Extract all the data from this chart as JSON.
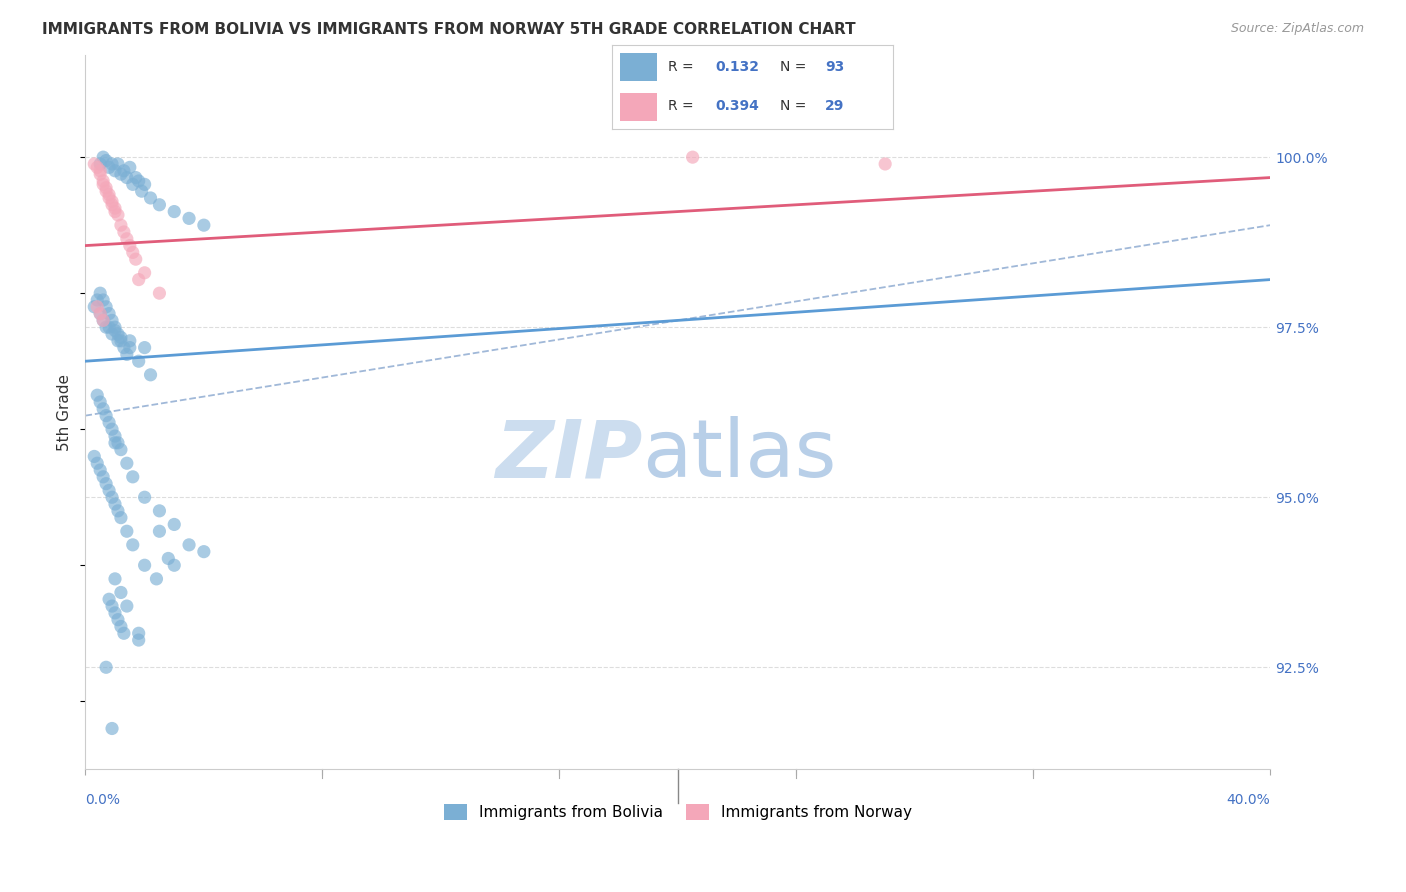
{
  "title": "IMMIGRANTS FROM BOLIVIA VS IMMIGRANTS FROM NORWAY 5TH GRADE CORRELATION CHART",
  "source": "Source: ZipAtlas.com",
  "ylabel": "5th Grade",
  "x_label_bottom_left": "0.0%",
  "x_label_bottom_right": "40.0%",
  "y_tick_labels": [
    "92.5%",
    "95.0%",
    "97.5%",
    "100.0%"
  ],
  "y_tick_values": [
    92.5,
    95.0,
    97.5,
    100.0
  ],
  "xlim": [
    0.0,
    40.0
  ],
  "ylim": [
    91.0,
    101.5
  ],
  "legend_bolivia_R": "0.132",
  "legend_bolivia_N": "93",
  "legend_norway_R": "0.394",
  "legend_norway_N": "29",
  "color_bolivia": "#7bafd4",
  "color_norway": "#f4a7b9",
  "color_bolivia_line": "#5b9bd5",
  "color_norway_line": "#e05c7a",
  "color_dashed_line": "#a0b8d8",
  "watermark_zip": "ZIP",
  "watermark_atlas": "atlas",
  "watermark_color_zip": "#ccddef",
  "watermark_color_atlas": "#b8cfe8",
  "bolivia_scatter_x": [
    0.5,
    0.6,
    0.7,
    0.8,
    0.9,
    1.0,
    1.1,
    1.2,
    1.3,
    1.4,
    1.5,
    1.6,
    1.7,
    1.8,
    1.9,
    2.0,
    2.2,
    2.5,
    3.0,
    3.5,
    4.0,
    0.3,
    0.4,
    0.5,
    0.6,
    0.7,
    0.8,
    0.9,
    1.0,
    1.1,
    1.2,
    1.3,
    1.4,
    0.5,
    0.6,
    0.7,
    0.8,
    0.9,
    1.0,
    1.1,
    1.2,
    1.5,
    1.8,
    2.2,
    0.4,
    0.5,
    0.6,
    0.7,
    0.8,
    0.9,
    1.0,
    1.1,
    1.2,
    1.4,
    1.6,
    2.0,
    2.5,
    3.0,
    0.3,
    0.4,
    0.5,
    0.6,
    0.7,
    0.8,
    0.9,
    1.0,
    1.1,
    1.2,
    1.4,
    1.6,
    2.0,
    2.4,
    3.0,
    4.0,
    1.5,
    2.0,
    0.8,
    0.9,
    1.0,
    1.1,
    1.2,
    1.3,
    1.8,
    2.5,
    3.5,
    1.0,
    1.2,
    1.4,
    0.7,
    0.9,
    1.8,
    2.8,
    1.0
  ],
  "bolivia_scatter_y": [
    99.9,
    100.0,
    99.95,
    99.85,
    99.9,
    99.8,
    99.9,
    99.75,
    99.8,
    99.7,
    99.85,
    99.6,
    99.7,
    99.65,
    99.5,
    99.6,
    99.4,
    99.3,
    99.2,
    99.1,
    99.0,
    97.8,
    97.9,
    97.7,
    97.6,
    97.5,
    97.5,
    97.4,
    97.45,
    97.3,
    97.35,
    97.2,
    97.1,
    98.0,
    97.9,
    97.8,
    97.7,
    97.6,
    97.5,
    97.4,
    97.3,
    97.2,
    97.0,
    96.8,
    96.5,
    96.4,
    96.3,
    96.2,
    96.1,
    96.0,
    95.9,
    95.8,
    95.7,
    95.5,
    95.3,
    95.0,
    94.8,
    94.6,
    95.6,
    95.5,
    95.4,
    95.3,
    95.2,
    95.1,
    95.0,
    94.9,
    94.8,
    94.7,
    94.5,
    94.3,
    94.0,
    93.8,
    94.0,
    94.2,
    97.3,
    97.2,
    93.5,
    93.4,
    93.3,
    93.2,
    93.1,
    93.0,
    92.9,
    94.5,
    94.3,
    93.8,
    93.6,
    93.4,
    92.5,
    91.6,
    93.0,
    94.1,
    95.8
  ],
  "norway_scatter_x": [
    0.3,
    0.4,
    0.5,
    0.5,
    0.6,
    0.6,
    0.7,
    0.7,
    0.8,
    0.8,
    0.9,
    0.9,
    1.0,
    1.0,
    1.1,
    1.2,
    1.3,
    1.4,
    1.5,
    1.6,
    1.7,
    2.0,
    2.5,
    0.4,
    0.5,
    0.6,
    20.5,
    27.0,
    1.8
  ],
  "norway_scatter_y": [
    99.9,
    99.85,
    99.75,
    99.8,
    99.6,
    99.65,
    99.55,
    99.5,
    99.45,
    99.4,
    99.35,
    99.3,
    99.25,
    99.2,
    99.15,
    99.0,
    98.9,
    98.8,
    98.7,
    98.6,
    98.5,
    98.3,
    98.0,
    97.8,
    97.7,
    97.6,
    100.0,
    99.9,
    98.2
  ],
  "bolivia_line_x0": 0,
  "bolivia_line_x1": 40,
  "bolivia_line_y0": 97.0,
  "bolivia_line_y1": 98.2,
  "norway_line_x0": 0,
  "norway_line_x1": 40,
  "norway_line_y0": 98.7,
  "norway_line_y1": 99.7,
  "dash_line_x0": 0,
  "dash_line_x1": 40,
  "dash_line_y0": 96.2,
  "dash_line_y1": 99.0
}
